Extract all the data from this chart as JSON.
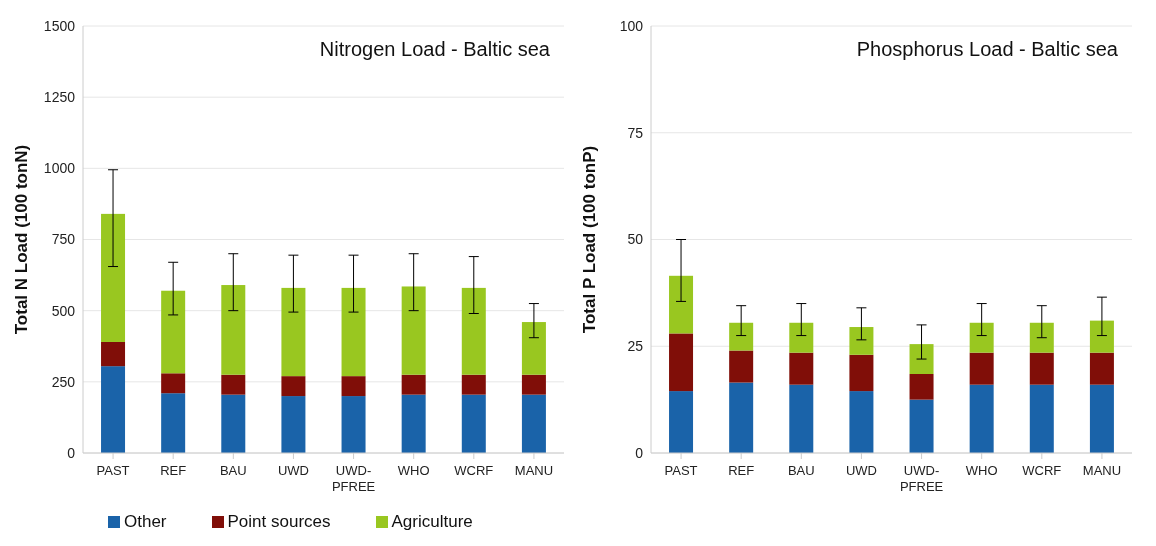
{
  "chart_data": [
    {
      "type": "bar",
      "title": "Nitrogen Load - Baltic sea",
      "ylabel": "Total N Load (100 tonN)",
      "categories": [
        "PAST",
        "REF",
        "BAU",
        "UWD",
        "UWD-PFREE",
        "WHO",
        "WCRF",
        "MANU"
      ],
      "stacked": true,
      "ylim": [
        0,
        1500
      ],
      "yticks": [
        0,
        250,
        500,
        750,
        1000,
        1250,
        1500
      ],
      "grid": "y",
      "legend": "bottom",
      "series": [
        {
          "name": "Other",
          "color": "#1a63a9",
          "values": [
            305,
            210,
            205,
            200,
            200,
            205,
            205,
            205
          ]
        },
        {
          "name": "Point sources",
          "color": "#800e08",
          "values": [
            85,
            70,
            70,
            70,
            70,
            70,
            70,
            70
          ]
        },
        {
          "name": "Agriculture",
          "color": "#99c720",
          "values": [
            450,
            290,
            315,
            310,
            310,
            310,
            305,
            185
          ],
          "errors": [
            [
              655,
              995
            ],
            [
              485,
              670
            ],
            [
              500,
              700
            ],
            [
              495,
              695
            ],
            [
              495,
              695
            ],
            [
              500,
              700
            ],
            [
              490,
              690
            ],
            [
              405,
              525
            ]
          ]
        }
      ]
    },
    {
      "type": "bar",
      "title": "Phosphorus Load - Baltic sea",
      "ylabel": "Total P Load (100 tonP)",
      "categories": [
        "PAST",
        "REF",
        "BAU",
        "UWD",
        "UWD-PFREE",
        "WHO",
        "WCRF",
        "MANU"
      ],
      "stacked": true,
      "ylim": [
        0,
        100
      ],
      "yticks": [
        0,
        25,
        50,
        75,
        100
      ],
      "grid": "y",
      "series": [
        {
          "color": "#1a63a9",
          "values": [
            14.5,
            16.5,
            16,
            14.5,
            12.5,
            16,
            16,
            16
          ]
        },
        {
          "color": "#800e08",
          "values": [
            13.5,
            7.5,
            7.5,
            8.5,
            6,
            7.5,
            7.5,
            7.5
          ]
        },
        {
          "color": "#99c720",
          "values": [
            13.5,
            6.5,
            7,
            6.5,
            7,
            7,
            7,
            7.5
          ],
          "errors": [
            [
              35.5,
              50
            ],
            [
              27.5,
              34.5
            ],
            [
              27.5,
              35
            ],
            [
              26.5,
              34
            ],
            [
              22,
              30
            ],
            [
              27.5,
              35
            ],
            [
              27,
              34.5
            ],
            [
              27.5,
              36.5
            ]
          ]
        }
      ]
    }
  ]
}
